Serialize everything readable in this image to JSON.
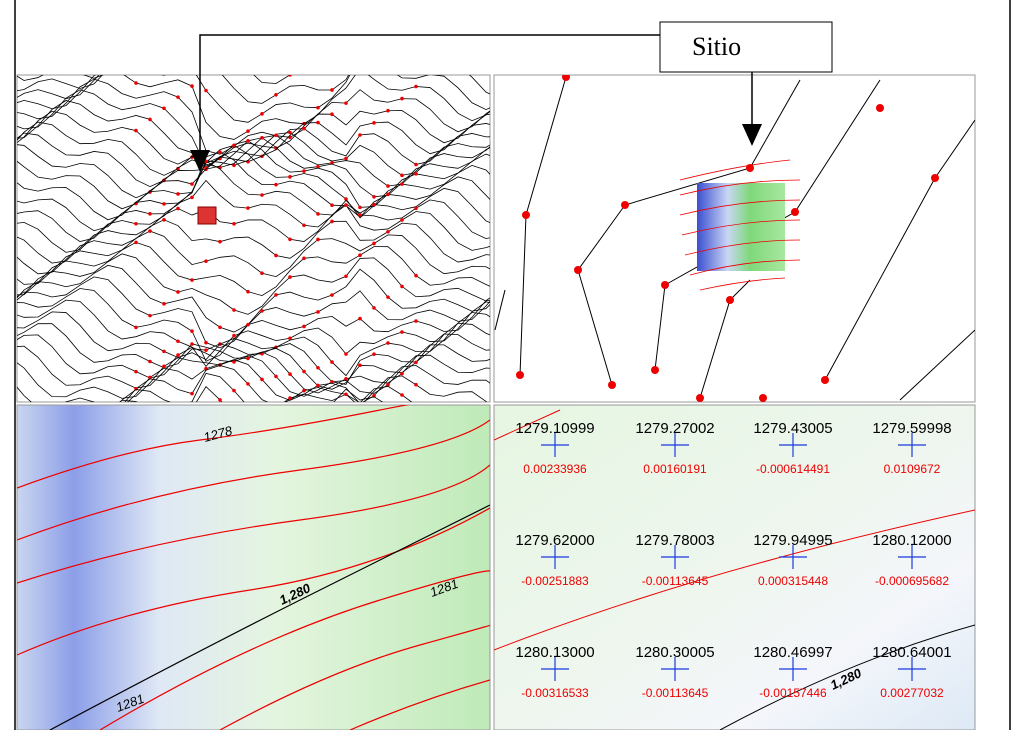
{
  "callout": {
    "label": "Sitio"
  },
  "interpolation_panel": {
    "contour_labels": [
      "1278",
      "1,280",
      "1281",
      "1281"
    ]
  },
  "grid_panel": {
    "contour_label": "1,280",
    "points": [
      {
        "elevation": "1279.10999",
        "residual": "0.00233936"
      },
      {
        "elevation": "1279.27002",
        "residual": "0.00160191"
      },
      {
        "elevation": "1279.43005",
        "residual": "-0.000614491"
      },
      {
        "elevation": "1279.59998",
        "residual": "0.0109672"
      },
      {
        "elevation": "1279.62000",
        "residual": "-0.00251883"
      },
      {
        "elevation": "1279.78003",
        "residual": "-0.00113645"
      },
      {
        "elevation": "1279.94995",
        "residual": "0.000315448"
      },
      {
        "elevation": "1280.12000",
        "residual": "-0.000695682"
      },
      {
        "elevation": "1280.13000",
        "residual": "-0.00316533"
      },
      {
        "elevation": "1280.30005",
        "residual": "-0.00113645"
      },
      {
        "elevation": "1280.46997",
        "residual": "-0.00157446"
      },
      {
        "elevation": "1280.64001",
        "residual": "0.00277032"
      }
    ]
  }
}
